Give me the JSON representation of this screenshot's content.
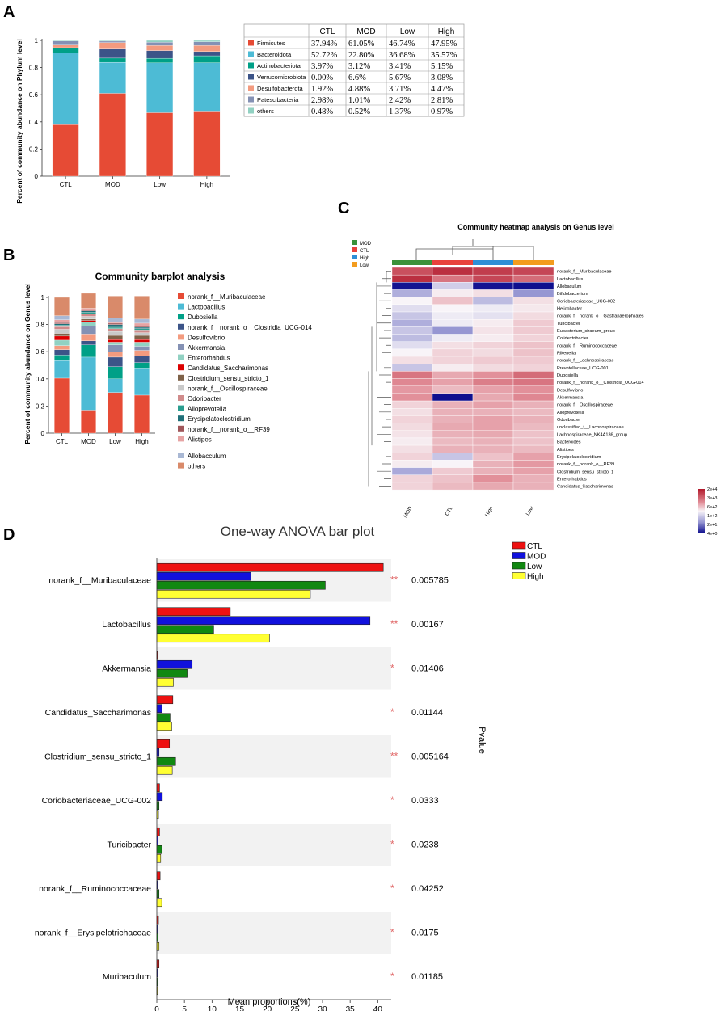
{
  "panels": {
    "a": "A",
    "b": "B",
    "c": "C",
    "d": "D"
  },
  "colors": {
    "palette": [
      "#e64b35",
      "#4dbbd5",
      "#00a087",
      "#3c5488",
      "#f39b7f",
      "#8491b4",
      "#91d1c2",
      "#dc0000",
      "#7e6148",
      "#b09c85"
    ],
    "heatmap_groups": {
      "MOD": "#3a923a",
      "CTL": "#e8423c",
      "High": "#2d8fd6",
      "Low": "#f39c1e"
    },
    "anova": {
      "CTL": "#ee1111",
      "MOD": "#1111dd",
      "Low": "#118811",
      "High": "#ffff33"
    },
    "star": "#e06666"
  },
  "chart_data": [
    {
      "id": "A",
      "type": "bar",
      "stacked": true,
      "ylabel": "Percent of community abundance on Phylum level",
      "ylim": [
        0,
        1
      ],
      "yticks": [
        "0",
        "0.2",
        "0.4",
        "0.6",
        "0.8",
        "1"
      ],
      "categories": [
        "CTL",
        "MOD",
        "Low",
        "High"
      ],
      "series": [
        {
          "name": "Firmicutes",
          "values": [
            0.3794,
            0.6105,
            0.4674,
            0.4795
          ]
        },
        {
          "name": "Bacteroidota",
          "values": [
            0.5272,
            0.228,
            0.3668,
            0.3557
          ]
        },
        {
          "name": "Actinobacteriota",
          "values": [
            0.0397,
            0.0312,
            0.0341,
            0.0515
          ]
        },
        {
          "name": "Verrucomicrobiota",
          "values": [
            0.0,
            0.066,
            0.0567,
            0.0308
          ]
        },
        {
          "name": "Desulfobacterota",
          "values": [
            0.0192,
            0.0488,
            0.0371,
            0.0447
          ]
        },
        {
          "name": "Patescibacteria",
          "values": [
            0.0298,
            0.0101,
            0.0242,
            0.0281
          ]
        },
        {
          "name": "others",
          "values": [
            0.0048,
            0.0052,
            0.0137,
            0.0097
          ]
        }
      ],
      "table": {
        "headers": [
          "CTL",
          "MOD",
          "Low",
          "High"
        ],
        "rows": [
          {
            "name": "Firmicutes",
            "cells": [
              "37.94%",
              "61.05%",
              "46.74%",
              "47.95%"
            ]
          },
          {
            "name": "Bacteroidota",
            "cells": [
              "52.72%",
              "22.80%",
              "36.68%",
              "35.57%"
            ]
          },
          {
            "name": "Actinobacteriota",
            "cells": [
              "3.97%",
              "3.12%",
              "3.41%",
              "5.15%"
            ]
          },
          {
            "name": "Verrucomicrobiota",
            "cells": [
              "0.00%",
              "6.6%",
              "5.67%",
              "3.08%"
            ]
          },
          {
            "name": "Desulfobacterota",
            "cells": [
              "1.92%",
              "4.88%",
              "3.71%",
              "4.47%"
            ]
          },
          {
            "name": "Patescibacteria",
            "cells": [
              "2.98%",
              "1.01%",
              "2.42%",
              "2.81%"
            ]
          },
          {
            "name": "others",
            "cells": [
              "0.48%",
              "0.52%",
              "1.37%",
              "0.97%"
            ]
          }
        ]
      }
    },
    {
      "id": "B",
      "type": "bar",
      "stacked": true,
      "title": "Community barplot analysis",
      "ylabel": "Percent of community abundance on Genus level",
      "ylim": [
        0,
        1
      ],
      "yticks": [
        "0",
        "0.2",
        "0.4",
        "0.6",
        "0.8",
        "1"
      ],
      "categories": [
        "CTL",
        "MOD",
        "Low",
        "High"
      ],
      "series": [
        {
          "name": "norank_f__Muribaculaceae",
          "color": "#e64b35",
          "values": [
            0.405,
            0.17,
            0.3,
            0.28
          ]
        },
        {
          "name": "Lactobacillus",
          "color": "#4dbbd5",
          "values": [
            0.13,
            0.39,
            0.1,
            0.2
          ]
        },
        {
          "name": "Dubosiella",
          "color": "#00a087",
          "values": [
            0.04,
            0.09,
            0.09,
            0.04
          ]
        },
        {
          "name": "norank_f__norank_o__Clostridia_UCG-014",
          "color": "#3c5488",
          "values": [
            0.04,
            0.03,
            0.07,
            0.05
          ]
        },
        {
          "name": "Desulfovibrio",
          "color": "#f39b7f",
          "values": [
            0.03,
            0.05,
            0.04,
            0.04
          ]
        },
        {
          "name": "Akkermansia",
          "color": "#8491b4",
          "values": [
            0.0,
            0.06,
            0.05,
            0.03
          ]
        },
        {
          "name": "Enterorhabdus",
          "color": "#91d1c2",
          "values": [
            0.04,
            0.03,
            0.02,
            0.03
          ]
        },
        {
          "name": "Candidatus_Saccharimonas",
          "color": "#dc0000",
          "values": [
            0.03,
            0.01,
            0.02,
            0.02
          ]
        },
        {
          "name": "Clostridium_sensu_stricto_1",
          "color": "#7e6148",
          "values": [
            0.02,
            0.01,
            0.03,
            0.03
          ]
        },
        {
          "name": "norank_f__Oscillospiraceae",
          "color": "#c9c9c9",
          "values": [
            0.03,
            0.02,
            0.03,
            0.02
          ]
        },
        {
          "name": "Odoribacter",
          "color": "#d08b8b",
          "values": [
            0.02,
            0.02,
            0.02,
            0.02
          ]
        },
        {
          "name": "Alloprevotella",
          "color": "#2a9d8f",
          "values": [
            0.01,
            0.01,
            0.01,
            0.01
          ]
        },
        {
          "name": "Erysipelatoclostridium",
          "color": "#1f6f78",
          "values": [
            0.01,
            0.01,
            0.02,
            0.01
          ]
        },
        {
          "name": "norank_f__norank_o__RF39",
          "color": "#a0565a",
          "values": [
            0.01,
            0.01,
            0.01,
            0.01
          ]
        },
        {
          "name": "Alistipes",
          "color": "#e6a3a3",
          "values": [
            0.02,
            0.01,
            0.01,
            0.02
          ]
        },
        {
          "name": "Allobacculum",
          "color": "#a9b8d4",
          "values": [
            0.03,
            0.0,
            0.03,
            0.03
          ]
        },
        {
          "name": "others",
          "color": "#d98a6a",
          "values": [
            0.135,
            0.11,
            0.16,
            0.17
          ]
        }
      ]
    },
    {
      "id": "C",
      "type": "heatmap",
      "title": "Community heatmap analysis on Genus level",
      "legend": [
        "MOD",
        "CTL",
        "High",
        "Low"
      ],
      "columns": [
        "MOD",
        "CTL",
        "High",
        "Low"
      ],
      "rows": [
        "norank_f__Muribaculaceae",
        "Lactobacillus",
        "Allobaculum",
        "Bifidobacterium",
        "Coriobacteriaceae_UCG-002",
        "Helicobacter",
        "norank_f__norank_o__Gastranaerophilales",
        "Turicibacter",
        "Eubacterium_siraeum_group",
        "Colidextribacter",
        "norank_f__Ruminococcaceae",
        "Rikenella",
        "norank_f__Lachnospiraceae",
        "Prevotellaceae_UCG-001",
        "Dubosiella",
        "norank_f__norank_o__Clostridia_UCG-014",
        "Desulfovibrio",
        "Akkermansia",
        "norank_f__Oscillospiraceae",
        "Alloprevotella",
        "Odoribacter",
        "unclassified_f__Lachnospiraceae",
        "Lachnospiraceae_NK4A136_group",
        "Bacteroides",
        "Alistipes",
        "Erysipelatoclostridium",
        "norank_f__norank_o__RF39",
        "Clostridium_sensu_stricto_1",
        "Enterorhabdus",
        "Candidatus_Saccharimonas"
      ],
      "values": [
        [
          0.88,
          0.95,
          0.92,
          0.9
        ],
        [
          0.95,
          0.8,
          0.9,
          0.82
        ],
        [
          0.02,
          0.42,
          0.02,
          0.01
        ],
        [
          0.35,
          0.52,
          0.55,
          0.3
        ],
        [
          0.5,
          0.62,
          0.38,
          0.55
        ],
        [
          0.45,
          0.5,
          0.48,
          0.53
        ],
        [
          0.4,
          0.48,
          0.46,
          0.56
        ],
        [
          0.35,
          0.48,
          0.52,
          0.6
        ],
        [
          0.4,
          0.3,
          0.54,
          0.6
        ],
        [
          0.38,
          0.48,
          0.52,
          0.58
        ],
        [
          0.45,
          0.55,
          0.58,
          0.62
        ],
        [
          0.5,
          0.58,
          0.56,
          0.62
        ],
        [
          0.55,
          0.58,
          0.6,
          0.6
        ],
        [
          0.4,
          0.52,
          0.56,
          0.58
        ],
        [
          0.8,
          0.68,
          0.74,
          0.82
        ],
        [
          0.76,
          0.7,
          0.78,
          0.8
        ],
        [
          0.72,
          0.64,
          0.7,
          0.74
        ],
        [
          0.74,
          0.01,
          0.68,
          0.76
        ],
        [
          0.58,
          0.66,
          0.7,
          0.66
        ],
        [
          0.55,
          0.66,
          0.66,
          0.64
        ],
        [
          0.58,
          0.66,
          0.7,
          0.66
        ],
        [
          0.56,
          0.68,
          0.7,
          0.64
        ],
        [
          0.54,
          0.66,
          0.68,
          0.62
        ],
        [
          0.52,
          0.64,
          0.66,
          0.62
        ],
        [
          0.55,
          0.66,
          0.66,
          0.64
        ],
        [
          0.58,
          0.4,
          0.62,
          0.7
        ],
        [
          0.52,
          0.5,
          0.66,
          0.72
        ],
        [
          0.34,
          0.6,
          0.66,
          0.7
        ],
        [
          0.58,
          0.62,
          0.74,
          0.66
        ],
        [
          0.58,
          0.64,
          0.68,
          0.66
        ]
      ],
      "scale_labels": [
        "2e+4",
        "3e+3",
        "6e+2",
        "1e+2",
        "2e+1",
        "4e+0"
      ]
    },
    {
      "id": "D",
      "type": "bar",
      "orientation": "horizontal",
      "title": "One-way ANOVA bar plot",
      "xlabel": "Mean proportions(%)",
      "ylabel_right": "Pvalue",
      "xlim": [
        0,
        42
      ],
      "xticks": [
        "0",
        "5",
        "10",
        "15",
        "20",
        "25",
        "30",
        "35",
        "40"
      ],
      "series_names": [
        "CTL",
        "MOD",
        "Low",
        "High"
      ],
      "categories": [
        {
          "name": "norank_f__Muribaculaceae",
          "values": [
            41,
            17,
            30.5,
            27.8
          ],
          "stars": "**",
          "pvalue": "0.005785"
        },
        {
          "name": "Lactobacillus",
          "values": [
            13.3,
            38.6,
            10.3,
            20.4
          ],
          "stars": "**",
          "pvalue": "0.00167"
        },
        {
          "name": "Akkermansia",
          "values": [
            0,
            6.4,
            5.5,
            3.0
          ],
          "stars": "*",
          "pvalue": "0.01406"
        },
        {
          "name": "Candidatus_Saccharimonas",
          "values": [
            2.9,
            0.9,
            2.4,
            2.7
          ],
          "stars": "*",
          "pvalue": "0.01144"
        },
        {
          "name": "Clostridium_sensu_stricto_1",
          "values": [
            2.3,
            0.4,
            3.4,
            2.8
          ],
          "stars": "**",
          "pvalue": "0.005164"
        },
        {
          "name": "Coriobacteriaceae_UCG-002",
          "values": [
            0.5,
            1.0,
            0.4,
            0.3
          ],
          "stars": "*",
          "pvalue": "0.0333"
        },
        {
          "name": "Turicibacter",
          "values": [
            0.5,
            0.2,
            0.9,
            0.7
          ],
          "stars": "*",
          "pvalue": "0.0238"
        },
        {
          "name": "norank_f__Ruminococcaceae",
          "values": [
            0.6,
            0.1,
            0.4,
            0.9
          ],
          "stars": "*",
          "pvalue": "0.04252"
        },
        {
          "name": "norank_f__Erysipelotrichaceae",
          "values": [
            0.3,
            0.1,
            0.2,
            0.4
          ],
          "stars": "*",
          "pvalue": "0.0175"
        },
        {
          "name": "Muribaculum",
          "values": [
            0.4,
            0.1,
            0.1,
            0.1
          ],
          "stars": "*",
          "pvalue": "0.01185"
        }
      ]
    }
  ]
}
